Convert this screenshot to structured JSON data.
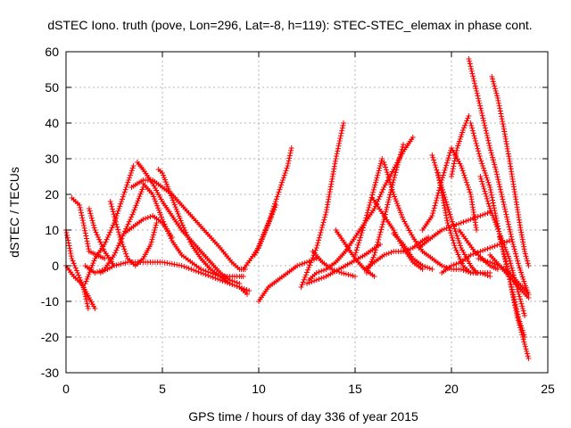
{
  "chart_data": {
    "type": "scatter",
    "title": "dSTEC Iono. truth (pove, Lon=296, Lat=-8, h=119): STEC-STEC_elemax in phase cont.",
    "xlabel": "GPS time / hours of day 336 of year 2015",
    "ylabel": "dSTEC  / TECUs",
    "xlim": [
      0,
      25
    ],
    "ylim": [
      -30,
      60
    ],
    "xticks": [
      0,
      5,
      10,
      15,
      20,
      25
    ],
    "yticks": [
      -30,
      -20,
      -10,
      0,
      10,
      20,
      30,
      40,
      50,
      60
    ],
    "grid": true,
    "legend": "none",
    "marker": "+",
    "color": "#ff0000",
    "series": [
      {
        "x": [
          0.0,
          0.3,
          0.6,
          0.9,
          1.15
        ],
        "y": [
          10,
          2,
          -2,
          -6,
          -12
        ]
      },
      {
        "x": [
          0.0,
          0.4,
          0.8,
          1.2,
          1.5
        ],
        "y": [
          0,
          -3,
          -5,
          -9,
          -12
        ]
      },
      {
        "x": [
          0.3,
          0.7,
          0.9,
          1.2,
          1.6,
          2.0
        ],
        "y": [
          19,
          17,
          12,
          4,
          3,
          2
        ]
      },
      {
        "x": [
          1.0,
          1.5,
          2.0,
          2.5,
          3.0,
          3.5
        ],
        "y": [
          -5,
          2,
          6,
          12,
          20,
          28
        ]
      },
      {
        "x": [
          1.0,
          1.5,
          2.0,
          2.5,
          3.0,
          3.5,
          4.0
        ],
        "y": [
          0,
          -2,
          -1,
          3,
          9,
          15,
          22
        ]
      },
      {
        "x": [
          1.2,
          1.5,
          2.0,
          2.5
        ],
        "y": [
          16,
          10,
          4,
          0
        ]
      },
      {
        "x": [
          2.3,
          2.8,
          3.2,
          3.6,
          4.0,
          4.4,
          4.7
        ],
        "y": [
          18,
          8,
          2,
          0,
          2,
          6,
          12
        ]
      },
      {
        "x": [
          1.8,
          2.5,
          3.2,
          4.0,
          5.0,
          6.0,
          7.0,
          8.0,
          9.0,
          9.4
        ],
        "y": [
          -2,
          0,
          1,
          1,
          1,
          0,
          -2,
          -4,
          -6,
          -8
        ]
      },
      {
        "x": [
          3.7,
          4.0,
          4.5,
          5.0,
          5.5,
          6.0,
          6.5,
          7.0,
          7.5,
          8.0,
          8.5,
          9.0
        ],
        "y": [
          29,
          27,
          23,
          18,
          14,
          10,
          7,
          4,
          1,
          -2,
          -4,
          -5
        ]
      },
      {
        "x": [
          4.0,
          4.5,
          5.0,
          5.5,
          6.0,
          7.0,
          8.0,
          9.0,
          9.2
        ],
        "y": [
          23,
          20,
          13,
          7,
          3,
          -1,
          -3,
          -3,
          -3
        ]
      },
      {
        "x": [
          4.8,
          5.0,
          5.5,
          6.0,
          6.5,
          7.0,
          7.5,
          8.0,
          8.5,
          9.0,
          9.5
        ],
        "y": [
          27,
          26,
          19,
          12,
          6,
          2,
          -1,
          -3,
          -5,
          -6,
          -7
        ]
      },
      {
        "x": [
          3.4,
          4.0,
          4.5,
          5.0,
          5.5,
          6.0,
          7.0,
          8.0,
          8.6,
          9.0,
          9.3
        ],
        "y": [
          22,
          24,
          24,
          22,
          20,
          17,
          11,
          5,
          1,
          -1,
          -1
        ]
      },
      {
        "x": [
          3.0,
          3.5,
          4.0,
          4.5,
          5.0,
          5.5
        ],
        "y": [
          9,
          11,
          13,
          14,
          12,
          8
        ]
      },
      {
        "x": [
          9.2,
          9.6,
          10.0,
          10.5,
          11.0,
          11.5,
          11.7
        ],
        "y": [
          -1,
          2,
          5,
          12,
          20,
          28,
          33
        ]
      },
      {
        "x": [
          10.0,
          10.5,
          11.0,
          11.5,
          12.0,
          12.5,
          13.0
        ],
        "y": [
          -10,
          -6,
          -4,
          -2,
          0,
          1,
          2
        ]
      },
      {
        "x": [
          9.8,
          10.2,
          10.6,
          10.9
        ],
        "y": [
          3,
          8,
          13,
          17
        ]
      },
      {
        "x": [
          12.2,
          13.0,
          13.5,
          14.0,
          14.4
        ],
        "y": [
          -6,
          5,
          15,
          30,
          40
        ]
      },
      {
        "x": [
          12.5,
          13.5,
          14.5,
          15.5,
          16.3
        ],
        "y": [
          -5,
          -3,
          0,
          3,
          6
        ]
      },
      {
        "x": [
          12.6,
          13.0,
          13.5,
          14.0,
          14.5,
          15.0,
          15.5,
          16.0,
          16.5,
          17.0,
          17.5,
          18.0
        ],
        "y": [
          -4,
          -2,
          -1,
          1,
          4,
          8,
          12,
          16,
          22,
          27,
          32,
          36
        ]
      },
      {
        "x": [
          12.8,
          13.3,
          13.8,
          14.3,
          15.0
        ],
        "y": [
          4,
          1,
          -1,
          -2,
          -3
        ]
      },
      {
        "x": [
          14.0,
          14.5,
          15.0,
          15.5,
          16.0
        ],
        "y": [
          10,
          6,
          2,
          -1,
          -3
        ]
      },
      {
        "x": [
          15.0,
          15.5,
          16.0,
          16.4
        ],
        "y": [
          3,
          12,
          22,
          30
        ]
      },
      {
        "x": [
          15.6,
          16.0,
          16.5,
          17.0,
          17.5
        ],
        "y": [
          -2,
          3,
          13,
          24,
          34
        ]
      },
      {
        "x": [
          15.5,
          16.0,
          16.5,
          17.0,
          17.5,
          18.0,
          18.5,
          18.8
        ],
        "y": [
          -1,
          1,
          3,
          4,
          4,
          5,
          7,
          8
        ]
      },
      {
        "x": [
          15.9,
          16.5,
          17.0,
          17.5,
          18.0,
          18.5
        ],
        "y": [
          19,
          14,
          10,
          5,
          1,
          -1
        ]
      },
      {
        "x": [
          17.0,
          17.5,
          18.0,
          18.5,
          19.0
        ],
        "y": [
          9,
          6,
          2,
          0,
          -1
        ]
      },
      {
        "x": [
          16.5,
          17.0,
          17.5,
          18.0,
          18.5,
          19.0,
          19.5,
          20.0,
          20.5,
          21.0,
          21.5,
          22.0
        ],
        "y": [
          29,
          20,
          13,
          8,
          4,
          2,
          0,
          -1,
          -1,
          -2,
          -2,
          -2
        ]
      },
      {
        "x": [
          18.5,
          19.0,
          19.5,
          20.0,
          20.5,
          21.0,
          21.3
        ],
        "y": [
          10,
          14,
          24,
          33,
          28,
          20,
          10
        ]
      },
      {
        "x": [
          19.0,
          19.5,
          20.0,
          20.5,
          21.0,
          21.3
        ],
        "y": [
          31,
          22,
          13,
          5,
          0,
          -2
        ]
      },
      {
        "x": [
          19.3,
          19.8,
          20.2,
          20.6,
          21.0,
          21.5,
          22.0
        ],
        "y": [
          26,
          12,
          5,
          0,
          -2,
          -2,
          -3
        ]
      },
      {
        "x": [
          18.3,
          19.0,
          19.5,
          20.0,
          20.5,
          21.0,
          21.5,
          22.0
        ],
        "y": [
          5,
          8,
          10,
          11,
          12,
          13,
          14,
          15
        ]
      },
      {
        "x": [
          19.5,
          20.0,
          20.5,
          21.0,
          21.5,
          22.0,
          22.5,
          23.0
        ],
        "y": [
          -2,
          0,
          1,
          3,
          4,
          5,
          6,
          7
        ]
      },
      {
        "x": [
          20.0,
          20.3,
          20.6,
          20.9
        ],
        "y": [
          25,
          33,
          38,
          42
        ]
      },
      {
        "x": [
          20.4,
          20.8,
          21.2,
          21.6,
          22.0,
          22.4
        ],
        "y": [
          10,
          7,
          4,
          2,
          0,
          -1
        ]
      },
      {
        "x": [
          20.9,
          21.3,
          21.7,
          22.0,
          22.3,
          22.6,
          22.9,
          23.2,
          23.5,
          23.8,
          24.0
        ],
        "y": [
          58,
          49,
          40,
          33,
          27,
          20,
          13,
          6,
          0,
          -5,
          -8
        ]
      },
      {
        "x": [
          21.0,
          21.5,
          22.0,
          22.3,
          22.6,
          22.9,
          23.2,
          23.5,
          23.8
        ],
        "y": [
          40,
          30,
          22,
          14,
          6,
          -1,
          -8,
          -15,
          -20
        ]
      },
      {
        "x": [
          21.5,
          22.0,
          22.5,
          23.0,
          23.4,
          23.8
        ],
        "y": [
          25,
          16,
          9,
          2,
          -6,
          -14
        ]
      },
      {
        "x": [
          22.1,
          22.4,
          22.7,
          23.0,
          23.3,
          23.6,
          23.8,
          24.0
        ],
        "y": [
          53,
          47,
          39,
          30,
          20,
          10,
          4,
          0
        ]
      },
      {
        "x": [
          22.5,
          22.8,
          23.1,
          23.4,
          23.7,
          24.0
        ],
        "y": [
          8,
          2,
          -6,
          -14,
          -20,
          -26
        ]
      },
      {
        "x": [
          21.4,
          22.0,
          22.5,
          23.0,
          23.5,
          24.0
        ],
        "y": [
          2,
          1,
          0,
          -2,
          -5,
          -8
        ]
      },
      {
        "x": [
          22.0,
          22.5,
          23.0,
          23.5,
          24.0
        ],
        "y": [
          3,
          0,
          -3,
          -6,
          -9
        ]
      }
    ]
  }
}
